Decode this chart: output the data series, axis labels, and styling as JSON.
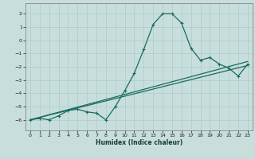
{
  "xlabel": "Humidex (Indice chaleur)",
  "ylabel": "",
  "background_color": "#c8dedd",
  "grid_color": "#aecfcc",
  "line_color": "#1a6b5e",
  "xlim": [
    -0.5,
    23.5
  ],
  "ylim": [
    -6.8,
    2.8
  ],
  "xticks": [
    0,
    1,
    2,
    3,
    4,
    5,
    6,
    7,
    8,
    9,
    10,
    11,
    12,
    13,
    14,
    15,
    16,
    17,
    18,
    19,
    20,
    21,
    22,
    23
  ],
  "yticks": [
    -6,
    -5,
    -4,
    -3,
    -2,
    -1,
    0,
    1,
    2
  ],
  "main_x": [
    0,
    1,
    2,
    3,
    4,
    5,
    6,
    7,
    8,
    9,
    10,
    11,
    12,
    13,
    14,
    15,
    16,
    17,
    18,
    19,
    20,
    21,
    22,
    23
  ],
  "main_y": [
    -6.0,
    -5.9,
    -6.0,
    -5.7,
    -5.3,
    -5.2,
    -5.4,
    -5.5,
    -6.0,
    -5.0,
    -3.8,
    -2.5,
    -0.7,
    1.2,
    2.0,
    2.0,
    1.3,
    -0.6,
    -1.5,
    -1.3,
    -1.8,
    -2.1,
    -2.7,
    -1.8
  ],
  "line1_x": [
    0,
    23
  ],
  "line1_y": [
    -6.0,
    -1.6
  ],
  "line2_x": [
    0,
    23
  ],
  "line2_y": [
    -6.0,
    -1.9
  ]
}
